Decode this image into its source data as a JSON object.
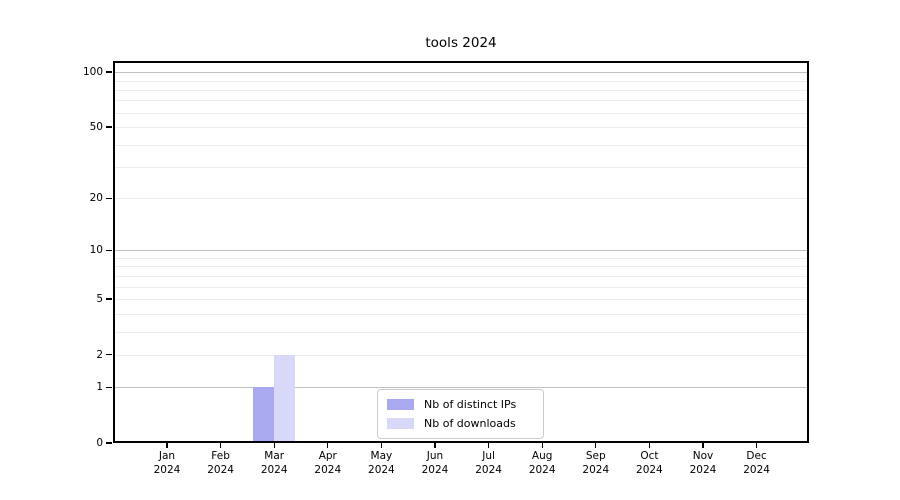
{
  "chart_data": {
    "type": "bar",
    "title": "tools 2024",
    "categories": [
      "Jan 2024",
      "Feb 2024",
      "Mar 2024",
      "Apr 2024",
      "May 2024",
      "Jun 2024",
      "Jul 2024",
      "Aug 2024",
      "Sep 2024",
      "Oct 2024",
      "Nov 2024",
      "Dec 2024"
    ],
    "series": [
      {
        "name": "Nb of distinct IPs",
        "color": "#a9a9f0",
        "values": [
          0,
          0,
          1,
          0,
          0,
          0,
          0,
          0,
          0,
          0,
          0,
          0
        ]
      },
      {
        "name": "Nb of downloads",
        "color": "#d8d8f8",
        "values": [
          0,
          0,
          2,
          0,
          0,
          0,
          0,
          0,
          0,
          0,
          0,
          0
        ]
      }
    ],
    "yscale": "log1p",
    "ylim": [
      0,
      115
    ],
    "yticks": [
      100,
      50,
      20,
      10,
      5,
      2,
      1,
      0
    ],
    "major_gridlines": [
      100,
      10,
      1
    ],
    "minor_gridlines": [
      90,
      80,
      70,
      60,
      50,
      40,
      30,
      20,
      9,
      8,
      7,
      6,
      5,
      4,
      3,
      2
    ],
    "grid": "horizontal",
    "legend_position": "bottom-center",
    "colors": {
      "major_grid": "#bfbfbf",
      "minor_grid": "#ececec",
      "axis": "#000000",
      "legend_border": "#cccccc",
      "background": "#ffffff"
    }
  }
}
